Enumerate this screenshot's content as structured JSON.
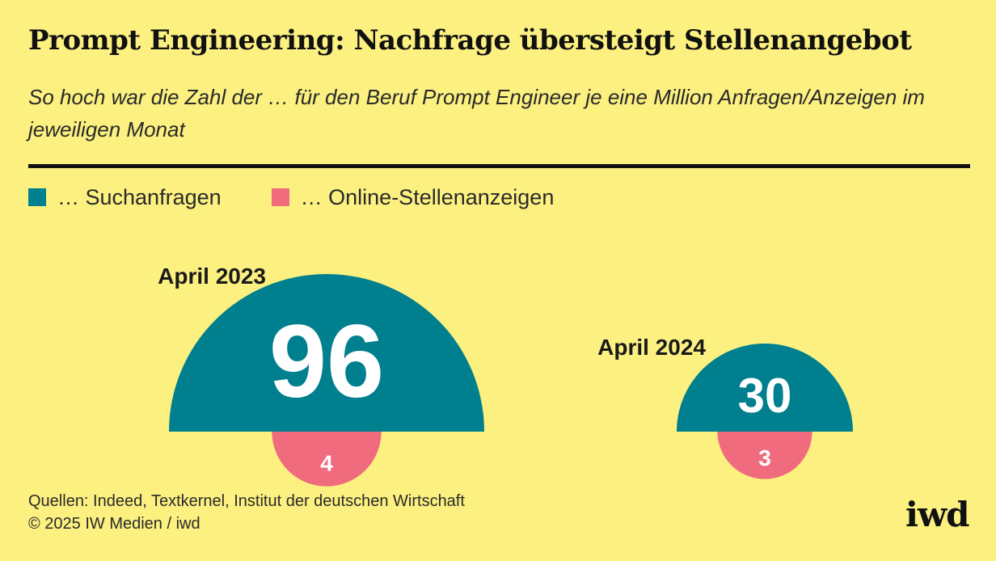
{
  "title": "Prompt Engineering: Nachfrage übersteigt Stellenangebot",
  "subtitle": "So hoch war die Zahl der … für den Beruf Prompt Engineer je eine Million Anfragen/Anzeigen im jeweiligen Monat",
  "legend": [
    {
      "label": "… Suchanfragen",
      "color": "#007f8f"
    },
    {
      "label": "… Online-Stellenanzeigen",
      "color": "#ef6b7d"
    }
  ],
  "sources": {
    "line1": "Quellen: Indeed, Textkernel, Institut der deutschen Wirtschaft",
    "line2": "© 2025 IW Medien / iwd"
  },
  "logo": "iwd",
  "colors": {
    "background": "#fbf080",
    "search": "#007f8f",
    "ads": "#ef6b7d"
  },
  "chart_data": {
    "type": "half-circle area comparison",
    "categories": [
      "April 2023",
      "April 2024"
    ],
    "series": [
      {
        "name": "… Suchanfragen",
        "values": [
          96,
          30
        ]
      },
      {
        "name": "… Online-Stellenanzeigen",
        "values": [
          4,
          3
        ]
      }
    ]
  }
}
